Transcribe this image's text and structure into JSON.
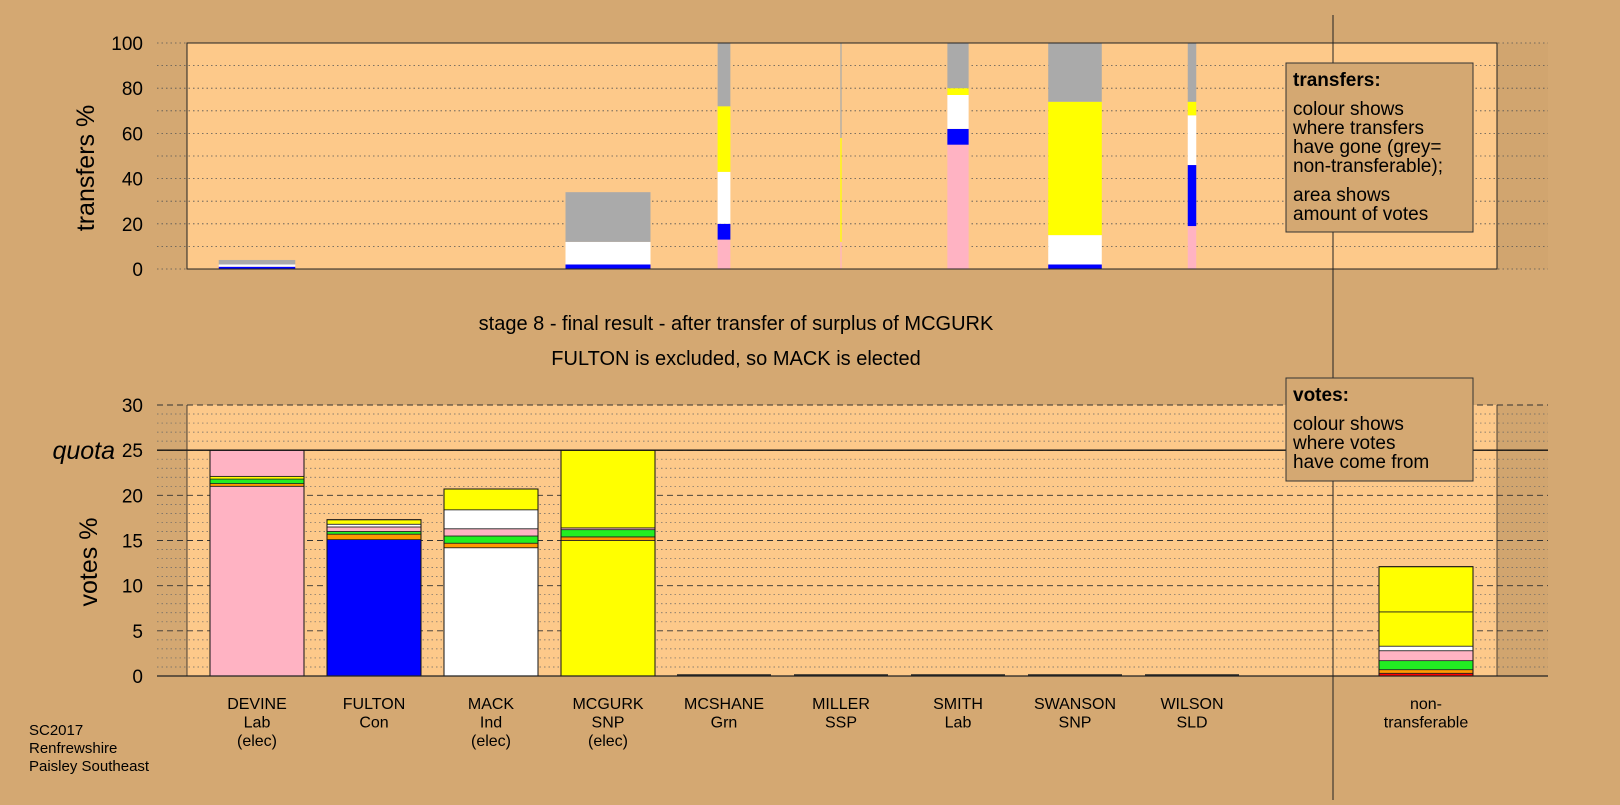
{
  "colors": {
    "background": "#d4a872",
    "plot_bg": "#fdc98a",
    "right_panel_bg": "#d1a56f",
    "non_transferable": "#aaaaaa",
    "Lab": "#ffb3c3",
    "Con": "#0000ff",
    "Ind": "#ffffff",
    "SNP": "#ffff00",
    "Grn": "#22ee22",
    "SSP": "#ff0000",
    "SLD": "#ff9900"
  },
  "header": {
    "stage_line1": "stage 8 - final result - after transfer of surplus of MCGURK",
    "stage_line2": "FULTON is excluded, so MACK is elected"
  },
  "source": {
    "line1": "SC2017",
    "line2": "Renfrewshire",
    "line3": "Paisley Southeast"
  },
  "legend_transfers": {
    "title": "transfers:",
    "lines": [
      "colour shows",
      "where transfers",
      "have gone (grey=",
      "non-transferable);",
      "area shows",
      "amount of votes"
    ]
  },
  "legend_votes": {
    "title": "votes:",
    "lines": [
      "colour shows",
      "where votes",
      "have come from"
    ]
  },
  "chart_data": [
    {
      "type": "bar",
      "ylabel": "transfers %",
      "ylim": [
        0,
        100
      ],
      "yticks": [
        0,
        20,
        40,
        60,
        80,
        100
      ],
      "grid": "dotted",
      "legend_placement": "top-right",
      "categories": [
        "DEVINE",
        "FULTON",
        "MACK",
        "MCGURK",
        "MCSHANE",
        "MILLER",
        "SMITH",
        "SWANSON",
        "WILSON"
      ],
      "columns": [
        {
          "candidate": "DEVINE",
          "share": 0.9,
          "segments": [
            {
              "to": "Con",
              "from": 0,
              "to_value": 1
            },
            {
              "to": "Ind",
              "from": 1,
              "to_value": 2
            },
            {
              "to": "non_transferable",
              "from": 2,
              "to_value": 4
            }
          ]
        },
        {
          "candidate": "FULTON",
          "share": 0,
          "segments": []
        },
        {
          "candidate": "MACK",
          "share": 0,
          "segments": []
        },
        {
          "candidate": "MCGURK",
          "share": 1.0,
          "segments": [
            {
              "to": "Con",
              "from": 0,
              "to_value": 2
            },
            {
              "to": "Ind",
              "from": 2,
              "to_value": 12
            },
            {
              "to": "non_transferable",
              "from": 12,
              "to_value": 34
            }
          ]
        },
        {
          "candidate": "MCSHANE",
          "share": 0.15,
          "segments": [
            {
              "to": "Lab",
              "from": 0,
              "to_value": 13
            },
            {
              "to": "Con",
              "from": 13,
              "to_value": 20
            },
            {
              "to": "Ind",
              "from": 20,
              "to_value": 43
            },
            {
              "to": "SNP",
              "from": 43,
              "to_value": 72
            },
            {
              "to": "non_transferable",
              "from": 72,
              "to_value": 100
            }
          ]
        },
        {
          "candidate": "MILLER",
          "share": 0.015,
          "segments": [
            {
              "to": "Lab",
              "from": 0,
              "to_value": 12
            },
            {
              "to": "SNP",
              "from": 12,
              "to_value": 58
            },
            {
              "to": "non_transferable",
              "from": 58,
              "to_value": 100
            }
          ]
        },
        {
          "candidate": "SMITH",
          "share": 0.25,
          "segments": [
            {
              "to": "Lab",
              "from": 0,
              "to_value": 55
            },
            {
              "to": "Con",
              "from": 55,
              "to_value": 62
            },
            {
              "to": "Ind",
              "from": 62,
              "to_value": 77
            },
            {
              "to": "SNP",
              "from": 77,
              "to_value": 80
            },
            {
              "to": "non_transferable",
              "from": 80,
              "to_value": 100
            }
          ]
        },
        {
          "candidate": "SWANSON",
          "share": 0.63,
          "segments": [
            {
              "to": "Con",
              "from": 0,
              "to_value": 2
            },
            {
              "to": "Ind",
              "from": 2,
              "to_value": 15
            },
            {
              "to": "SNP",
              "from": 15,
              "to_value": 74
            },
            {
              "to": "non_transferable",
              "from": 74,
              "to_value": 100
            }
          ]
        },
        {
          "candidate": "WILSON",
          "share": 0.1,
          "segments": [
            {
              "to": "Lab",
              "from": 0,
              "to_value": 19
            },
            {
              "to": "Con",
              "from": 19,
              "to_value": 46
            },
            {
              "to": "Ind",
              "from": 46,
              "to_value": 68
            },
            {
              "to": "SNP",
              "from": 68,
              "to_value": 74
            },
            {
              "to": "non_transferable",
              "from": 74,
              "to_value": 100
            }
          ]
        }
      ]
    },
    {
      "type": "bar",
      "ylabel": "votes %",
      "ylim": [
        0,
        30
      ],
      "yticks": [
        0,
        5,
        10,
        15,
        20,
        25,
        30
      ],
      "quota": 25,
      "quota_label": "quota",
      "grid": "dashed",
      "legend_placement": "top-right",
      "categories": [
        "DEVINE",
        "FULTON",
        "MACK",
        "MCGURK",
        "MCSHANE",
        "MILLER",
        "SMITH",
        "SWANSON",
        "WILSON",
        "non-transferable"
      ],
      "labels": [
        {
          "name": "DEVINE",
          "party": "Lab",
          "status": "(elec)"
        },
        {
          "name": "FULTON",
          "party": "Con",
          "status": ""
        },
        {
          "name": "MACK",
          "party": "Ind",
          "status": "(elec)"
        },
        {
          "name": "MCGURK",
          "party": "SNP",
          "status": "(elec)"
        },
        {
          "name": "MCSHANE",
          "party": "Grn",
          "status": ""
        },
        {
          "name": "MILLER",
          "party": "SSP",
          "status": ""
        },
        {
          "name": "SMITH",
          "party": "Lab",
          "status": ""
        },
        {
          "name": "SWANSON",
          "party": "SNP",
          "status": ""
        },
        {
          "name": "WILSON",
          "party": "SLD",
          "status": ""
        },
        {
          "name": "non-",
          "party": "transferable",
          "status": ""
        }
      ],
      "columns": [
        {
          "candidate": "DEVINE",
          "total": 25.0,
          "segments": [
            {
              "from": "Lab",
              "value": 21.0
            },
            {
              "from": "SLD",
              "value": 0.3
            },
            {
              "from": "Grn",
              "value": 0.5
            },
            {
              "from": "SNP",
              "value": 0.3
            },
            {
              "from": "Lab",
              "value": 2.9
            }
          ]
        },
        {
          "candidate": "FULTON",
          "total": 17.3,
          "segments": [
            {
              "from": "Con",
              "value": 15.1
            },
            {
              "from": "SLD",
              "value": 0.6
            },
            {
              "from": "Grn",
              "value": 0.3
            },
            {
              "from": "Lab",
              "value": 0.5
            },
            {
              "from": "Ind",
              "value": 0.3
            },
            {
              "from": "SNP",
              "value": 0.5
            }
          ]
        },
        {
          "candidate": "MACK",
          "total": 20.7,
          "segments": [
            {
              "from": "Ind",
              "value": 14.2
            },
            {
              "from": "SLD",
              "value": 0.5
            },
            {
              "from": "Grn",
              "value": 0.8
            },
            {
              "from": "Lab",
              "value": 0.8
            },
            {
              "from": "Ind",
              "value": 2.1
            },
            {
              "from": "SNP",
              "value": 2.3
            }
          ]
        },
        {
          "candidate": "MCGURK",
          "total": 25.0,
          "segments": [
            {
              "from": "SNP",
              "value": 15.0
            },
            {
              "from": "SLD",
              "value": 0.4
            },
            {
              "from": "Grn",
              "value": 0.8
            },
            {
              "from": "Lab",
              "value": 0.2
            },
            {
              "from": "SNP",
              "value": 8.6
            }
          ]
        },
        {
          "candidate": "MCSHANE",
          "total": 0,
          "segments": []
        },
        {
          "candidate": "MILLER",
          "total": 0,
          "segments": []
        },
        {
          "candidate": "SMITH",
          "total": 0,
          "segments": []
        },
        {
          "candidate": "SWANSON",
          "total": 0,
          "segments": []
        },
        {
          "candidate": "WILSON",
          "total": 0,
          "segments": []
        },
        {
          "candidate": "non-transferable",
          "total": 12.1,
          "segments": [
            {
              "from": "SSP",
              "value": 0.3
            },
            {
              "from": "SLD",
              "value": 0.4
            },
            {
              "from": "Grn",
              "value": 1.0
            },
            {
              "from": "Lab",
              "value": 1.1
            },
            {
              "from": "Ind",
              "value": 0.5
            },
            {
              "from": "SNP",
              "value": 3.8
            },
            {
              "from": "SNP",
              "value": 5.0
            }
          ]
        }
      ]
    }
  ]
}
